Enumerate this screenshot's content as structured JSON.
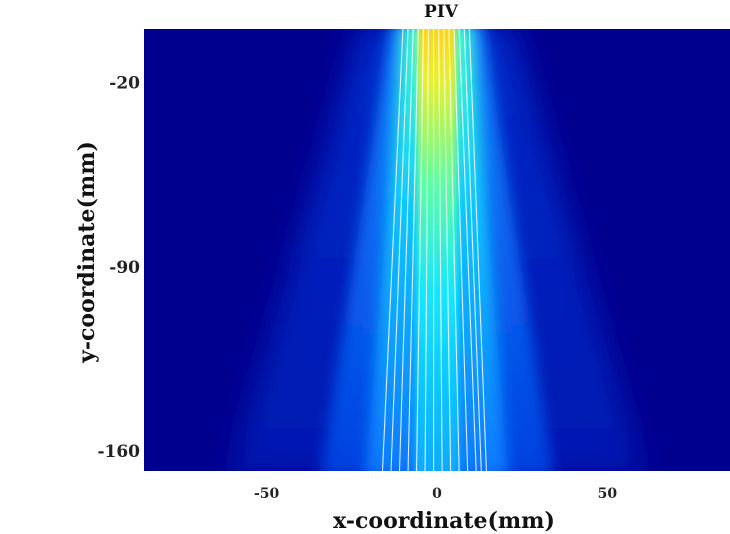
{
  "chart_data": {
    "type": "heatmap",
    "title": "PIV",
    "xlabel": "x-coordinate(mm)",
    "ylabel": "y-coordinate(mm)",
    "xlim": [
      -86,
      86
    ],
    "ylim": [
      -168,
      0
    ],
    "x_ticks": [
      -50,
      0,
      50
    ],
    "x_tick_labels": [
      "-50",
      "0",
      "50"
    ],
    "y_ticks": [
      -20,
      -90,
      -160
    ],
    "y_tick_labels": [
      "-20",
      "-90",
      "-160"
    ],
    "colormap": [
      "#00007f",
      "#0000ff",
      "#0080ff",
      "#00ffff",
      "#80ff80",
      "#ffff00"
    ],
    "background_color": "#00008f",
    "grid": false,
    "streamline_color": "#ffffff",
    "jet": {
      "center_x": 0,
      "half_width_top_mm": 10,
      "half_width_bottom_mm": 19,
      "streamline_x_top": [
        -10,
        -8.5,
        -7,
        -5.5,
        -4,
        -2.5,
        -1,
        0.5,
        2,
        3.5,
        5,
        6.5,
        8,
        9.5
      ],
      "streamline_x_bottom": [
        -16,
        -13.5,
        -11,
        -8.5,
        -6,
        -3.5,
        -1,
        1.5,
        4,
        6.5,
        9,
        11.5,
        13,
        14.5
      ]
    }
  }
}
